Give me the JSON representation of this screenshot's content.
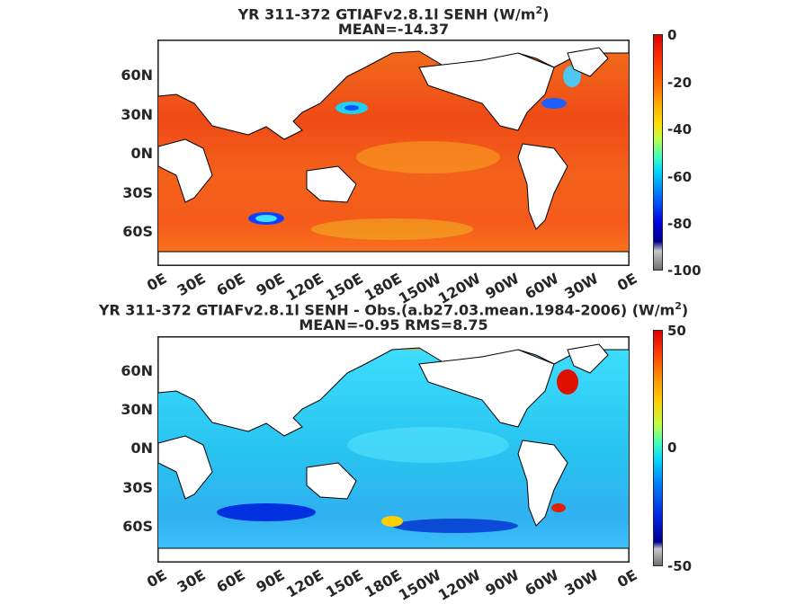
{
  "panels": [
    {
      "title_line1": "YR 311-372 GTIAFv2.8.1l  SENH (W/m",
      "title_sup": "2",
      "title_end": ")",
      "title_line2": "MEAN=-14.37",
      "colorbar": {
        "labels": [
          "0",
          "-20",
          "-40",
          "-60",
          "-80",
          "-100"
        ]
      }
    },
    {
      "title_line1": "YR 311-372 GTIAFv2.8.1l SENH - Obs.(a.b27.03.mean.1984-2006) (W/m",
      "title_sup": "2",
      "title_end": ")",
      "title_line2": "MEAN=-0.95 RMS=8.75",
      "colorbar": {
        "labels": [
          "50",
          "0",
          "-50"
        ]
      }
    }
  ],
  "lat_labels": [
    "60N",
    "30N",
    "0N",
    "30S",
    "60S"
  ],
  "lon_labels": [
    "0E",
    "30E",
    "60E",
    "90E",
    "120E",
    "150E",
    "180E",
    "150W",
    "120W",
    "90W",
    "60W",
    "30W",
    "0E"
  ],
  "colors": {
    "ocean_top": "#f5561a",
    "ocean_bottom": "#2ec8ee",
    "land": "#ffffff",
    "coast": "#000000"
  },
  "chart_data": {
    "type": "heatmap",
    "maps": [
      {
        "variable": "SENH",
        "units": "W/m2",
        "mean": -14.37,
        "color_range": [
          -100,
          0
        ]
      },
      {
        "variable": "SENH - Obs.",
        "units": "W/m2",
        "mean": -0.95,
        "rms": 8.75,
        "color_range": [
          -50,
          50
        ]
      }
    ]
  }
}
